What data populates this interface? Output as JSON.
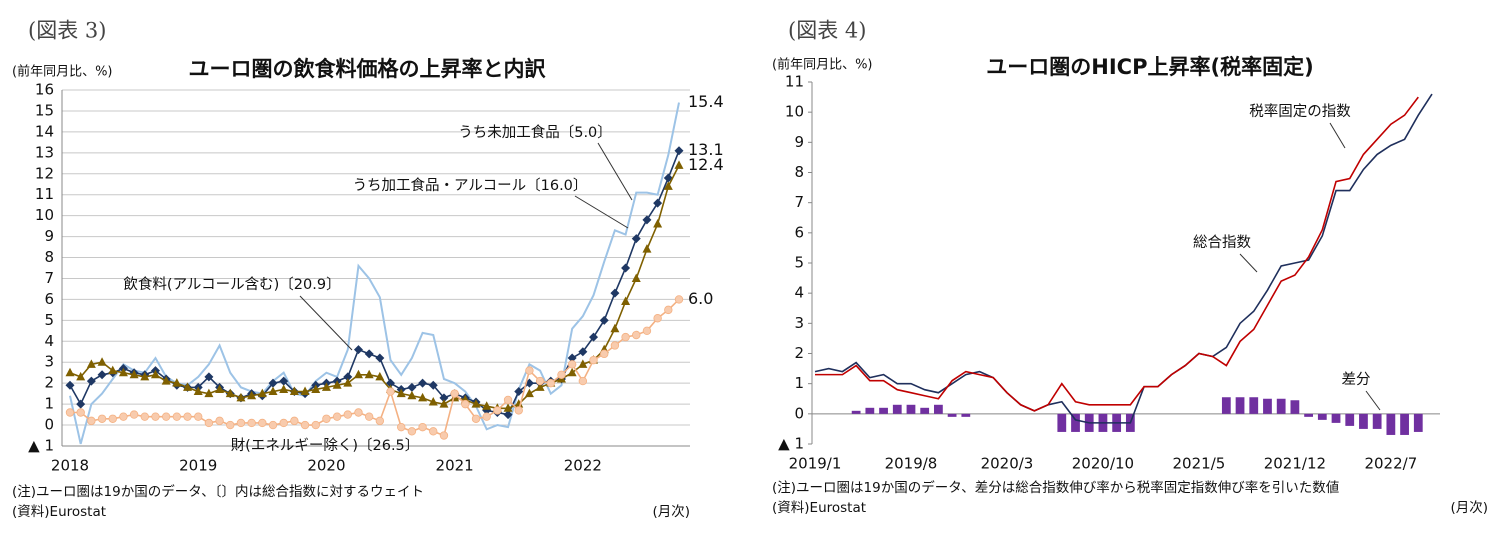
{
  "chart_data": [
    {
      "type": "line",
      "figure_label": "(図表 3)",
      "title": "ユーロ圏の飲食料価格の上昇率と内訳",
      "y_unit": "(前年同月比、%)",
      "note": "(注)ユーロ圏は19か国のデータ、〔〕内は総合指数に対するウェイト",
      "source": "(資料)Eurostat",
      "x_unit": "(月次)",
      "grid": true,
      "ylim": [
        -1,
        16
      ],
      "yticks": [
        {
          "value": -1,
          "label": "▲ 1"
        },
        0,
        1,
        2,
        3,
        4,
        5,
        6,
        7,
        8,
        9,
        10,
        11,
        12,
        13,
        14,
        15,
        16
      ],
      "categories": [
        "2018",
        null,
        null,
        null,
        null,
        null,
        null,
        null,
        null,
        null,
        null,
        null,
        "2019",
        null,
        null,
        null,
        null,
        null,
        null,
        null,
        null,
        null,
        null,
        null,
        "2020",
        null,
        null,
        null,
        null,
        null,
        null,
        null,
        null,
        null,
        null,
        null,
        "2021",
        null,
        null,
        null,
        null,
        null,
        null,
        null,
        null,
        null,
        null,
        null,
        "2022",
        null,
        null,
        null,
        null,
        null,
        null,
        null,
        null,
        null
      ],
      "series": [
        {
          "name": "うち未加工食品〔5.0〕",
          "color": "#9dc3e6",
          "marker": "none",
          "values": [
            1.4,
            -0.9,
            1.0,
            1.5,
            2.2,
            2.9,
            2.6,
            2.5,
            3.2,
            2.3,
            2.0,
            1.9,
            2.3,
            2.9,
            3.8,
            2.5,
            1.8,
            1.6,
            1.5,
            2.1,
            2.5,
            1.5,
            1.4,
            2.1,
            2.5,
            2.3,
            3.6,
            7.6,
            7.0,
            6.1,
            3.1,
            2.4,
            3.2,
            4.4,
            4.3,
            2.2,
            2.0,
            1.6,
            0.9,
            -0.2,
            0.0,
            -0.1,
            1.7,
            2.9,
            2.6,
            1.5,
            1.9,
            4.6,
            5.2,
            6.2,
            7.8,
            9.3,
            9.1,
            11.1,
            11.1,
            11.0,
            12.9,
            15.4
          ]
        },
        {
          "name": "飲食料(アルコール含む)〔20.9〕",
          "color": "#1f3864",
          "marker": "diamond",
          "values": [
            1.9,
            1.0,
            2.1,
            2.4,
            2.5,
            2.7,
            2.5,
            2.4,
            2.6,
            2.2,
            1.9,
            1.8,
            1.8,
            2.3,
            1.8,
            1.5,
            1.3,
            1.5,
            1.4,
            2.0,
            2.1,
            1.6,
            1.5,
            1.9,
            2.0,
            2.1,
            2.3,
            3.6,
            3.4,
            3.2,
            2.0,
            1.7,
            1.8,
            2.0,
            1.9,
            1.3,
            1.5,
            1.3,
            1.1,
            0.7,
            0.6,
            0.5,
            1.6,
            2.0,
            2.0,
            2.1,
            2.2,
            3.2,
            3.5,
            4.2,
            5.0,
            6.3,
            7.5,
            8.9,
            9.8,
            10.6,
            11.8,
            13.1
          ]
        },
        {
          "name": "うち加工食品・アルコール〔16.0〕",
          "color": "#7f6000",
          "marker": "triangle",
          "values": [
            2.5,
            2.3,
            2.9,
            3.0,
            2.6,
            2.5,
            2.4,
            2.3,
            2.4,
            2.1,
            2.0,
            1.8,
            1.6,
            1.5,
            1.7,
            1.5,
            1.3,
            1.4,
            1.5,
            1.6,
            1.7,
            1.6,
            1.6,
            1.7,
            1.8,
            1.9,
            2.0,
            2.4,
            2.4,
            2.3,
            1.7,
            1.5,
            1.4,
            1.3,
            1.1,
            1.0,
            1.3,
            1.2,
            1.0,
            0.9,
            0.8,
            0.8,
            1.0,
            1.5,
            1.8,
            2.0,
            2.2,
            2.5,
            2.9,
            3.1,
            3.6,
            4.6,
            5.9,
            7.0,
            8.4,
            9.6,
            11.4,
            12.4
          ]
        },
        {
          "name": "財(エネルギー除く)〔26.5〕",
          "color": "#f4b183",
          "marker": "circle",
          "values": [
            0.6,
            0.6,
            0.2,
            0.3,
            0.3,
            0.4,
            0.5,
            0.4,
            0.4,
            0.4,
            0.4,
            0.4,
            0.4,
            0.1,
            0.2,
            0.0,
            0.1,
            0.1,
            0.1,
            0.0,
            0.1,
            0.2,
            0.0,
            0.0,
            0.3,
            0.4,
            0.5,
            0.6,
            0.4,
            0.2,
            1.6,
            -0.1,
            -0.3,
            -0.1,
            -0.3,
            -0.5,
            1.5,
            1.0,
            0.3,
            0.4,
            0.7,
            1.2,
            0.7,
            2.6,
            2.1,
            2.0,
            2.4,
            2.9,
            2.1,
            3.1,
            3.4,
            3.8,
            4.2,
            4.3,
            4.5,
            5.1,
            5.5,
            6.0
          ],
          "value_labels": [
            null,
            null,
            null,
            null,
            null,
            null,
            null,
            null,
            null,
            null,
            null,
            null,
            null,
            null,
            null,
            null,
            null,
            null,
            null,
            null,
            null,
            null,
            null,
            null,
            null,
            null,
            null,
            null,
            null,
            null,
            null,
            null,
            null,
            null,
            null,
            null,
            null,
            null,
            null,
            null,
            null,
            null,
            null,
            null,
            null,
            null,
            null,
            null,
            null,
            null,
            null,
            null,
            null,
            null,
            null,
            null,
            null,
            "6.0"
          ]
        }
      ]
    },
    {
      "type": "line",
      "figure_label": "(図表 4)",
      "title": "ユーロ圏のHICP上昇率(税率固定)",
      "y_unit": "(前年同月比、%)",
      "note": "(注)ユーロ圏は19か国のデータ、差分は総合指数伸び率から税率固定指数伸び率を引いた数値",
      "source": "(資料)Eurostat",
      "x_unit": "(月次)",
      "grid": false,
      "ylim": [
        -1,
        11
      ],
      "yticks": [
        {
          "value": -1,
          "label": "▲ 1"
        },
        0,
        1,
        2,
        3,
        4,
        5,
        6,
        7,
        8,
        9,
        10,
        11
      ],
      "categories": [
        "2019/1",
        null,
        null,
        null,
        null,
        null,
        null,
        "2019/8",
        null,
        null,
        null,
        null,
        null,
        null,
        "2020/3",
        null,
        null,
        null,
        null,
        null,
        null,
        "2020/10",
        null,
        null,
        null,
        null,
        null,
        null,
        "2021/5",
        null,
        null,
        null,
        null,
        null,
        null,
        "2021/12",
        null,
        null,
        null,
        null,
        null,
        null,
        "2022/7",
        null,
        null,
        null
      ],
      "series": [
        {
          "name": "差分",
          "color": "#7030a0",
          "type": "bar",
          "values": [
            0.0,
            0.0,
            0.0,
            0.1,
            0.2,
            0.2,
            0.3,
            0.3,
            0.2,
            0.3,
            -0.1,
            -0.1,
            0.0,
            0.0,
            0.0,
            0.0,
            0.0,
            0.0,
            -0.6,
            -0.6,
            -0.6,
            -0.6,
            -0.6,
            -0.6,
            0.0,
            0.0,
            0.0,
            0.0,
            0.0,
            0.0,
            0.55,
            0.55,
            0.55,
            0.5,
            0.5,
            0.45,
            -0.1,
            -0.2,
            -0.3,
            -0.4,
            -0.5,
            -0.5,
            -0.7,
            -0.7,
            -0.6,
            null
          ]
        },
        {
          "name": "総合指数",
          "color": "#1f2f5c",
          "type": "line",
          "values": [
            1.4,
            1.5,
            1.4,
            1.7,
            1.2,
            1.3,
            1.0,
            1.0,
            0.8,
            0.7,
            1.0,
            1.3,
            1.4,
            1.2,
            0.7,
            0.3,
            0.1,
            0.3,
            0.4,
            -0.2,
            -0.3,
            -0.3,
            -0.3,
            -0.3,
            0.9,
            0.9,
            1.3,
            1.6,
            2.0,
            1.9,
            2.2,
            3.0,
            3.4,
            4.1,
            4.9,
            5.0,
            5.1,
            5.9,
            7.4,
            7.4,
            8.1,
            8.6,
            8.9,
            9.1,
            9.9,
            10.6
          ]
        },
        {
          "name": "税率固定の指数",
          "color": "#c00000",
          "type": "line",
          "values": [
            1.3,
            1.3,
            1.3,
            1.6,
            1.1,
            1.1,
            0.8,
            0.7,
            0.6,
            0.5,
            1.1,
            1.4,
            1.3,
            1.2,
            0.7,
            0.3,
            0.1,
            0.3,
            1.0,
            0.4,
            0.3,
            0.3,
            0.3,
            0.3,
            0.9,
            0.9,
            1.3,
            1.6,
            2.0,
            1.9,
            1.6,
            2.4,
            2.8,
            3.6,
            4.4,
            4.6,
            5.2,
            6.1,
            7.7,
            7.8,
            8.6,
            9.1,
            9.6,
            9.9,
            10.5,
            null
          ]
        }
      ]
    }
  ]
}
